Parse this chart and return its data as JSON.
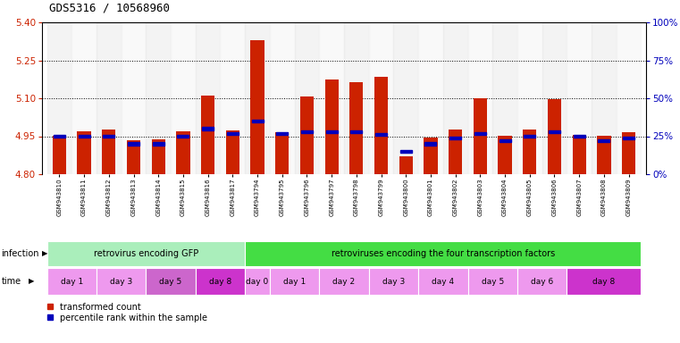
{
  "title": "GDS5316 / 10568960",
  "samples": [
    "GSM943810",
    "GSM943811",
    "GSM943812",
    "GSM943813",
    "GSM943814",
    "GSM943815",
    "GSM943816",
    "GSM943817",
    "GSM943794",
    "GSM943795",
    "GSM943796",
    "GSM943797",
    "GSM943798",
    "GSM943799",
    "GSM943800",
    "GSM943801",
    "GSM943802",
    "GSM943803",
    "GSM943804",
    "GSM943805",
    "GSM943806",
    "GSM943807",
    "GSM943808",
    "GSM943809"
  ],
  "transformed_count": [
    4.95,
    4.968,
    4.978,
    4.934,
    4.936,
    4.97,
    5.112,
    4.972,
    5.33,
    4.966,
    5.107,
    5.175,
    5.165,
    5.186,
    4.87,
    4.945,
    4.975,
    5.1,
    4.95,
    4.975,
    5.095,
    4.955,
    4.952,
    4.965
  ],
  "percentile": [
    25,
    25,
    25,
    20,
    20,
    25,
    30,
    27,
    35,
    27,
    28,
    28,
    28,
    26,
    15,
    20,
    24,
    27,
    22,
    25,
    28,
    25,
    22,
    24
  ],
  "ymin": 4.8,
  "ymax": 5.4,
  "yticks_left": [
    4.8,
    4.95,
    5.1,
    5.25,
    5.4
  ],
  "yticks_right": [
    0,
    25,
    50,
    75,
    100
  ],
  "bar_color": "#cc2200",
  "percentile_color": "#0000bb",
  "grid_lines": [
    4.95,
    5.1,
    5.25
  ],
  "infection_groups": [
    {
      "label": "retrovirus encoding GFP",
      "start": 0,
      "end": 8,
      "color": "#aaeebb"
    },
    {
      "label": "retroviruses encoding the four transcription factors",
      "start": 8,
      "end": 24,
      "color": "#44dd44"
    }
  ],
  "time_groups": [
    {
      "label": "day 1",
      "start": 0,
      "end": 2,
      "color": "#ee99ee"
    },
    {
      "label": "day 3",
      "start": 2,
      "end": 4,
      "color": "#ee99ee"
    },
    {
      "label": "day 5",
      "start": 4,
      "end": 6,
      "color": "#cc66cc"
    },
    {
      "label": "day 8",
      "start": 6,
      "end": 8,
      "color": "#cc33cc"
    },
    {
      "label": "day 0",
      "start": 8,
      "end": 9,
      "color": "#ee99ee"
    },
    {
      "label": "day 1",
      "start": 9,
      "end": 11,
      "color": "#ee99ee"
    },
    {
      "label": "day 2",
      "start": 11,
      "end": 13,
      "color": "#ee99ee"
    },
    {
      "label": "day 3",
      "start": 13,
      "end": 15,
      "color": "#ee99ee"
    },
    {
      "label": "day 4",
      "start": 15,
      "end": 17,
      "color": "#ee99ee"
    },
    {
      "label": "day 5",
      "start": 17,
      "end": 19,
      "color": "#ee99ee"
    },
    {
      "label": "day 6",
      "start": 19,
      "end": 21,
      "color": "#ee99ee"
    },
    {
      "label": "day 8",
      "start": 21,
      "end": 24,
      "color": "#cc33cc"
    }
  ],
  "background_color": "#ffffff",
  "bar_width": 0.55,
  "figwidth": 7.61,
  "figheight": 3.84,
  "dpi": 100
}
